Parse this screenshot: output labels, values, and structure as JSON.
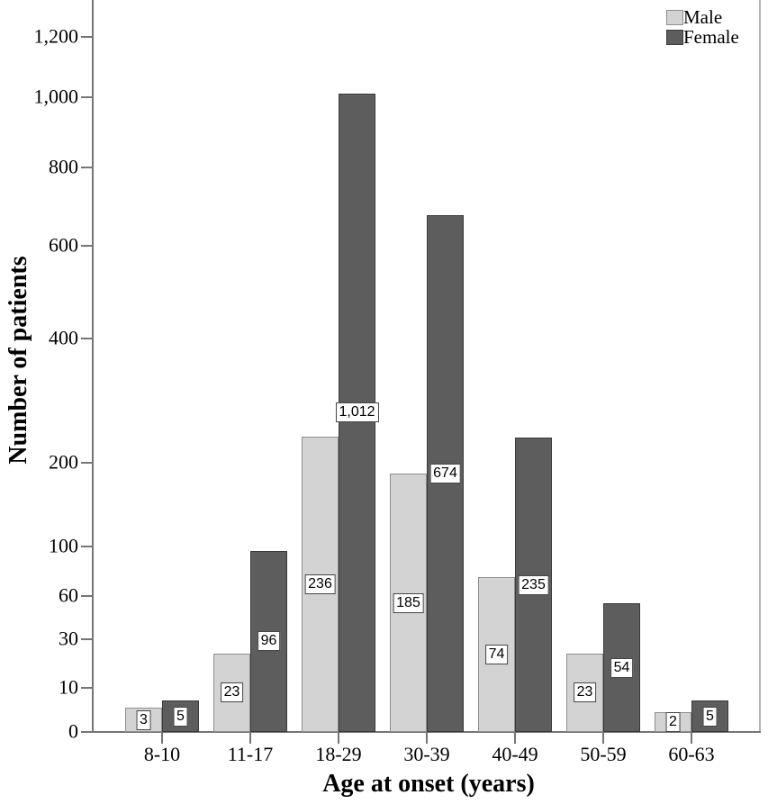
{
  "chart_data": {
    "type": "bar",
    "title": "",
    "xlabel": "Age at onset (years)",
    "ylabel": "Number of patients",
    "categories": [
      "8-10",
      "11-17",
      "18-29",
      "30-39",
      "40-49",
      "50-59",
      "60-63"
    ],
    "series": [
      {
        "name": "Male",
        "fill": "#d3d3d3",
        "stroke": "#8e8e8e",
        "values": [
          3,
          23,
          236,
          185,
          74,
          23,
          2
        ]
      },
      {
        "name": "Female",
        "fill": "#5d5d5d",
        "stroke": "#3a3a3a",
        "values": [
          5,
          96,
          1012,
          674,
          235,
          54,
          5
        ]
      }
    ],
    "y_ticks": [
      0,
      10,
      30,
      60,
      100,
      200,
      400,
      600,
      800,
      1000,
      1200
    ],
    "y_scale": "nonlinear-sqrt-like",
    "ylim": [
      0,
      1260
    ],
    "grid": false,
    "bar_value_labels": true,
    "legend_position": "top-right",
    "label_box": {
      "background": "#ffffff",
      "border": "#454545"
    }
  }
}
